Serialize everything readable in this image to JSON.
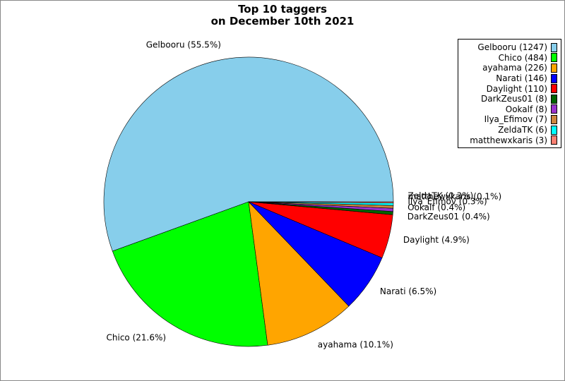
{
  "chart_data": {
    "type": "pie",
    "title_lines": [
      "Top 10 taggers",
      "on December 10th 2021"
    ],
    "slices": [
      {
        "legend": "Gelbooru (1247)",
        "label": "Gelbooru (55.5%)",
        "value": 1247,
        "percent": 55.5,
        "color": "#87ceeb"
      },
      {
        "legend": "Chico (484)",
        "label": "Chico (21.6%)",
        "value": 484,
        "percent": 21.6,
        "color": "#00ff00"
      },
      {
        "legend": "ayahama (226)",
        "label": "ayahama (10.1%)",
        "value": 226,
        "percent": 10.1,
        "color": "#ffa500"
      },
      {
        "legend": "Narati (146)",
        "label": "Narati (6.5%)",
        "value": 146,
        "percent": 6.5,
        "color": "#0000ff"
      },
      {
        "legend": "Daylight (110)",
        "label": "Daylight (4.9%)",
        "value": 110,
        "percent": 4.9,
        "color": "#ff0000"
      },
      {
        "legend": "DarkZeus01 (8)",
        "label": "DarkZeus01 (0.4%)",
        "value": 8,
        "percent": 0.4,
        "color": "#006400"
      },
      {
        "legend": "Ookalf (8)",
        "label": "Ookalf (0.4%)",
        "value": 8,
        "percent": 0.4,
        "color": "#9932cc"
      },
      {
        "legend": "Ilya_Efimov (7)",
        "label": "Ilya_Efimov (0.3%)",
        "value": 7,
        "percent": 0.3,
        "color": "#cd853f"
      },
      {
        "legend": "ZeldaTK (6)",
        "label": "ZeldaTK (0.3%)",
        "value": 6,
        "percent": 0.3,
        "color": "#00ffff"
      },
      {
        "legend": "matthewxkaris (3)",
        "label": "matthewxkaris (0.1%)",
        "value": 3,
        "percent": 0.1,
        "color": "#fa8072"
      }
    ],
    "legend_position": "top-right"
  }
}
